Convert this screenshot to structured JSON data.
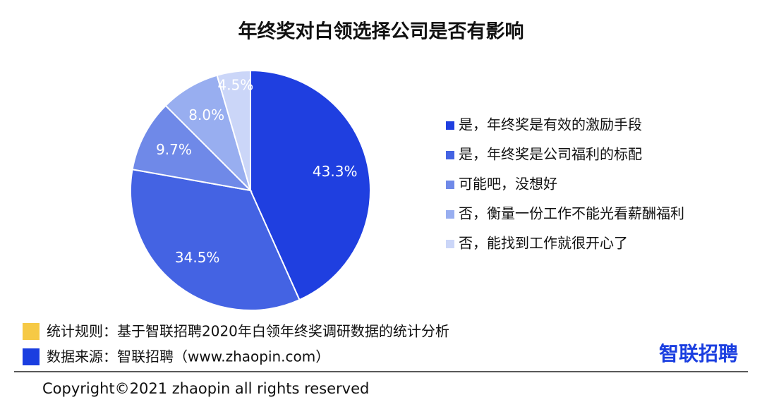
{
  "chart_data": {
    "type": "pie",
    "title": "年终奖对白领选择公司是否有影响",
    "categories": [
      "是，年终奖是有效的激励手段",
      "是，年终奖是公司福利的标配",
      "可能吧，没想好",
      "否，衡量一份工作不能光看薪酬福利",
      "否，能找到工作就很开心了"
    ],
    "values": [
      43.3,
      34.5,
      9.7,
      8.0,
      4.5
    ],
    "value_labels": [
      "43.3%",
      "34.5%",
      "9.7%",
      "8.0%",
      "4.5%"
    ],
    "colors": [
      "#1f3fe0",
      "#4463e3",
      "#6f89e8",
      "#98aef0",
      "#cbd6f8"
    ]
  },
  "footer": {
    "rule": "统计规则：基于智联招聘2020年白领年终奖调研数据的统计分析",
    "source": "数据来源：智联招聘（www.zhaopin.com）",
    "logo": "智联招聘",
    "copyright": "Copyright©2021 zhaopin all rights reserved"
  }
}
